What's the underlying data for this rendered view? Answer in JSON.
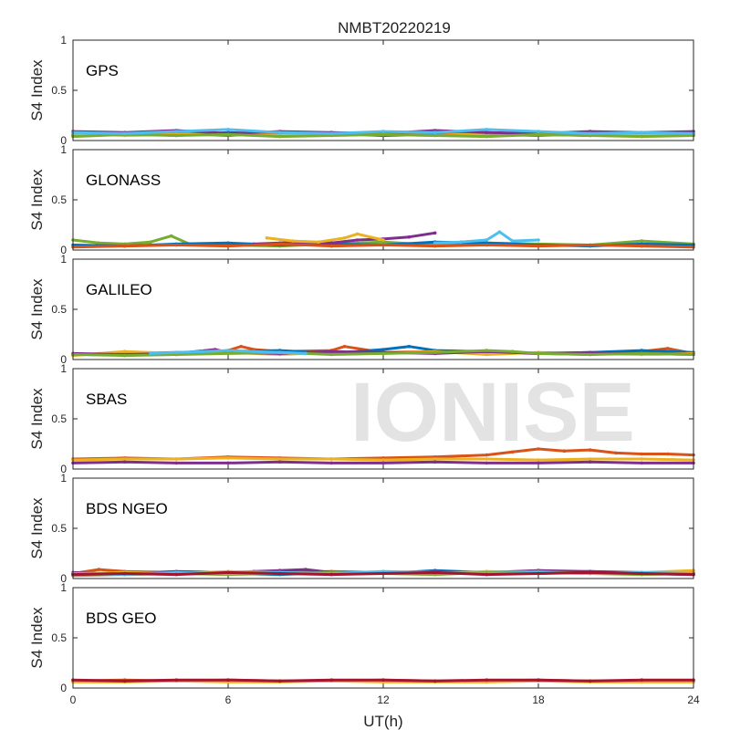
{
  "figure": {
    "title": "NMBT20220219",
    "watermark": "IONISE",
    "xlabel": "UT(h)",
    "x_ticks": [
      0,
      6,
      12,
      18,
      24
    ],
    "series_colors": [
      "#0072BD",
      "#D95319",
      "#EDB120",
      "#7E2F8E",
      "#77AC30",
      "#4DBEEE",
      "#A2142F"
    ]
  },
  "chart_data": [
    {
      "type": "scatter",
      "label": "GPS",
      "ylabel": "S4 Index",
      "xlim": [
        0,
        24
      ],
      "ylim": [
        0,
        1
      ],
      "y_ticks": [
        "0",
        "0.5",
        "1"
      ],
      "series": [
        {
          "color": "#0072BD",
          "x": [
            0,
            2,
            4,
            6,
            8,
            10,
            12,
            14,
            16,
            18,
            20,
            22,
            24
          ],
          "y": [
            0.06,
            0.07,
            0.05,
            0.08,
            0.06,
            0.07,
            0.05,
            0.06,
            0.08,
            0.06,
            0.05,
            0.07,
            0.06
          ]
        },
        {
          "color": "#D95319",
          "x": [
            0,
            2,
            4,
            6,
            8,
            10,
            12,
            14,
            16,
            18,
            20,
            22,
            24
          ],
          "y": [
            0.05,
            0.06,
            0.07,
            0.05,
            0.08,
            0.06,
            0.07,
            0.09,
            0.06,
            0.05,
            0.07,
            0.06,
            0.05
          ]
        },
        {
          "color": "#EDB120",
          "x": [
            0,
            2,
            4,
            6,
            8,
            10,
            12,
            14,
            16,
            18,
            20,
            22,
            24
          ],
          "y": [
            0.07,
            0.05,
            0.06,
            0.07,
            0.05,
            0.08,
            0.06,
            0.05,
            0.07,
            0.08,
            0.06,
            0.05,
            0.07
          ]
        },
        {
          "color": "#7E2F8E",
          "x": [
            0,
            2,
            4,
            6,
            8,
            10,
            12,
            14,
            16,
            18,
            20,
            22,
            24
          ],
          "y": [
            0.09,
            0.08,
            0.1,
            0.07,
            0.09,
            0.08,
            0.07,
            0.1,
            0.08,
            0.07,
            0.09,
            0.08,
            0.09
          ]
        },
        {
          "color": "#77AC30",
          "x": [
            0,
            2,
            4,
            6,
            8,
            10,
            12,
            14,
            16,
            18,
            20,
            22,
            24
          ],
          "y": [
            0.04,
            0.06,
            0.05,
            0.06,
            0.04,
            0.05,
            0.06,
            0.05,
            0.04,
            0.06,
            0.05,
            0.04,
            0.05
          ]
        },
        {
          "color": "#4DBEEE",
          "x": [
            0,
            2,
            4,
            6,
            8,
            10,
            12,
            14,
            16,
            18,
            20,
            22,
            24
          ],
          "y": [
            0.08,
            0.07,
            0.09,
            0.11,
            0.08,
            0.07,
            0.09,
            0.08,
            0.11,
            0.09,
            0.07,
            0.08,
            0.07
          ]
        }
      ]
    },
    {
      "type": "scatter",
      "label": "GLONASS",
      "ylabel": "S4 Index",
      "xlim": [
        0,
        24
      ],
      "ylim": [
        0,
        1
      ],
      "y_ticks": [
        "0",
        "0.5",
        "1"
      ],
      "series": [
        {
          "color": "#77AC30",
          "x": [
            0,
            1,
            2,
            3,
            3.8,
            4.5,
            6,
            8,
            10,
            12,
            14,
            16,
            18,
            20,
            22,
            24
          ],
          "y": [
            0.1,
            0.07,
            0.06,
            0.08,
            0.14,
            0.06,
            0.05,
            0.04,
            0.06,
            0.08,
            0.05,
            0.07,
            0.06,
            0.05,
            0.09,
            0.06
          ]
        },
        {
          "color": "#0072BD",
          "x": [
            0,
            2,
            4,
            6,
            8,
            10,
            12,
            14,
            16,
            18,
            20,
            22,
            24
          ],
          "y": [
            0.05,
            0.04,
            0.06,
            0.07,
            0.05,
            0.06,
            0.05,
            0.08,
            0.07,
            0.05,
            0.04,
            0.06,
            0.05
          ]
        },
        {
          "color": "#7E2F8E",
          "x": [
            7,
            8,
            9,
            10,
            11,
            12,
            13,
            14
          ],
          "y": [
            0.06,
            0.07,
            0.08,
            0.07,
            0.1,
            0.11,
            0.13,
            0.17
          ]
        },
        {
          "color": "#EDB120",
          "x": [
            7.5,
            8.5,
            9.5,
            10.5,
            11,
            12
          ],
          "y": [
            0.12,
            0.09,
            0.08,
            0.12,
            0.16,
            0.1
          ]
        },
        {
          "color": "#4DBEEE",
          "x": [
            14,
            15,
            16,
            16.5,
            17,
            18
          ],
          "y": [
            0.07,
            0.08,
            0.1,
            0.18,
            0.09,
            0.1
          ]
        },
        {
          "color": "#D95319",
          "x": [
            0,
            2,
            4,
            6,
            8,
            10,
            12,
            14,
            16,
            18,
            20,
            22,
            24
          ],
          "y": [
            0.03,
            0.04,
            0.05,
            0.04,
            0.06,
            0.04,
            0.05,
            0.04,
            0.05,
            0.04,
            0.05,
            0.04,
            0.03
          ]
        }
      ]
    },
    {
      "type": "scatter",
      "label": "GALILEO",
      "ylabel": "S4 Index",
      "xlim": [
        0,
        24
      ],
      "ylim": [
        0,
        1
      ],
      "y_ticks": [
        "0",
        "0.5",
        "1"
      ],
      "series": [
        {
          "color": "#D95319",
          "x": [
            0,
            2,
            4,
            6,
            6.5,
            7,
            8,
            10,
            10.5,
            12,
            14,
            16,
            18,
            20,
            22,
            23,
            24
          ],
          "y": [
            0.05,
            0.06,
            0.05,
            0.09,
            0.13,
            0.1,
            0.08,
            0.09,
            0.13,
            0.07,
            0.08,
            0.07,
            0.06,
            0.05,
            0.08,
            0.11,
            0.06
          ]
        },
        {
          "color": "#0072BD",
          "x": [
            0,
            2,
            4,
            6,
            8,
            10,
            12,
            13,
            14,
            16,
            18,
            20,
            22,
            24
          ],
          "y": [
            0.05,
            0.06,
            0.07,
            0.08,
            0.09,
            0.06,
            0.1,
            0.13,
            0.09,
            0.08,
            0.06,
            0.07,
            0.09,
            0.07
          ]
        },
        {
          "color": "#EDB120",
          "x": [
            0,
            1,
            2,
            4,
            6,
            8,
            10,
            12,
            14,
            16,
            18,
            20,
            22,
            24
          ],
          "y": [
            0.04,
            0.06,
            0.08,
            0.06,
            0.07,
            0.05,
            0.07,
            0.06,
            0.08,
            0.05,
            0.07,
            0.06,
            0.05,
            0.06
          ]
        },
        {
          "color": "#7E2F8E",
          "x": [
            0,
            2,
            4,
            5.5,
            6,
            8,
            10,
            12,
            14,
            16,
            18,
            20,
            22,
            24
          ],
          "y": [
            0.06,
            0.05,
            0.06,
            0.1,
            0.07,
            0.06,
            0.08,
            0.07,
            0.06,
            0.08,
            0.06,
            0.07,
            0.06,
            0.05
          ]
        },
        {
          "color": "#77AC30",
          "x": [
            0,
            2,
            4,
            6,
            8,
            10,
            12,
            14,
            16,
            17,
            18,
            20,
            22,
            24
          ],
          "y": [
            0.05,
            0.04,
            0.05,
            0.06,
            0.07,
            0.05,
            0.06,
            0.07,
            0.09,
            0.08,
            0.06,
            0.05,
            0.06,
            0.05
          ]
        },
        {
          "color": "#4DBEEE",
          "x": [
            3,
            4,
            5,
            6,
            7,
            8,
            9
          ],
          "y": [
            0.06,
            0.07,
            0.08,
            0.09,
            0.08,
            0.07,
            0.06
          ]
        }
      ]
    },
    {
      "type": "scatter",
      "label": "SBAS",
      "ylabel": "S4 Index",
      "xlim": [
        0,
        24
      ],
      "ylim": [
        0,
        1
      ],
      "y_ticks": [
        "0",
        "0.5",
        "1"
      ],
      "series": [
        {
          "color": "#D95319",
          "x": [
            0,
            2,
            4,
            6,
            8,
            10,
            12,
            14,
            16,
            17,
            18,
            19,
            20,
            21,
            22,
            23,
            24
          ],
          "y": [
            0.1,
            0.11,
            0.1,
            0.12,
            0.11,
            0.1,
            0.11,
            0.12,
            0.14,
            0.17,
            0.2,
            0.18,
            0.19,
            0.16,
            0.15,
            0.15,
            0.14
          ]
        },
        {
          "color": "#EDB120",
          "x": [
            0,
            2,
            4,
            6,
            8,
            10,
            12,
            14,
            16,
            18,
            20,
            22,
            24
          ],
          "y": [
            0.09,
            0.1,
            0.1,
            0.11,
            0.1,
            0.1,
            0.09,
            0.1,
            0.1,
            0.09,
            0.1,
            0.1,
            0.09
          ]
        },
        {
          "color": "#7E2F8E",
          "x": [
            0,
            2,
            4,
            6,
            8,
            10,
            12,
            14,
            16,
            18,
            20,
            22,
            24
          ],
          "y": [
            0.06,
            0.07,
            0.06,
            0.06,
            0.07,
            0.06,
            0.06,
            0.07,
            0.06,
            0.06,
            0.07,
            0.06,
            0.06
          ]
        }
      ]
    },
    {
      "type": "scatter",
      "label": "BDS NGEO",
      "ylabel": "S4 Index",
      "xlim": [
        0,
        24
      ],
      "ylim": [
        0,
        1
      ],
      "y_ticks": [
        "0",
        "0.5",
        "1"
      ],
      "series": [
        {
          "color": "#D95319",
          "x": [
            0,
            1,
            2,
            4,
            6,
            8,
            10,
            12,
            14,
            16,
            18,
            20,
            22,
            24
          ],
          "y": [
            0.05,
            0.09,
            0.07,
            0.06,
            0.05,
            0.06,
            0.07,
            0.06,
            0.07,
            0.05,
            0.08,
            0.06,
            0.05,
            0.06
          ]
        },
        {
          "color": "#0072BD",
          "x": [
            0,
            2,
            4,
            6,
            8,
            10,
            12,
            14,
            16,
            18,
            20,
            22,
            24
          ],
          "y": [
            0.04,
            0.05,
            0.06,
            0.05,
            0.04,
            0.06,
            0.05,
            0.08,
            0.06,
            0.05,
            0.07,
            0.05,
            0.04
          ]
        },
        {
          "color": "#7E2F8E",
          "x": [
            0,
            2,
            4,
            6,
            7,
            8,
            9,
            10,
            12,
            14,
            16,
            18,
            20,
            22,
            24
          ],
          "y": [
            0.06,
            0.05,
            0.07,
            0.06,
            0.07,
            0.08,
            0.09,
            0.06,
            0.05,
            0.07,
            0.06,
            0.08,
            0.07,
            0.06,
            0.05
          ]
        },
        {
          "color": "#EDB120",
          "x": [
            0,
            2,
            4,
            6,
            8,
            10,
            12,
            14,
            16,
            18,
            20,
            22,
            24
          ],
          "y": [
            0.05,
            0.06,
            0.05,
            0.07,
            0.06,
            0.05,
            0.06,
            0.05,
            0.07,
            0.06,
            0.05,
            0.06,
            0.08
          ]
        },
        {
          "color": "#77AC30",
          "x": [
            0,
            2,
            4,
            6,
            8,
            10,
            12,
            14,
            16,
            18,
            20,
            22,
            24
          ],
          "y": [
            0.03,
            0.04,
            0.05,
            0.04,
            0.05,
            0.06,
            0.05,
            0.04,
            0.06,
            0.07,
            0.05,
            0.04,
            0.05
          ]
        },
        {
          "color": "#4DBEEE",
          "x": [
            0,
            2,
            4,
            6,
            8,
            10,
            12,
            14,
            16,
            18,
            20,
            22,
            24
          ],
          "y": [
            0.05,
            0.04,
            0.06,
            0.05,
            0.06,
            0.05,
            0.07,
            0.06,
            0.05,
            0.06,
            0.05,
            0.06,
            0.05
          ]
        },
        {
          "color": "#A2142F",
          "x": [
            0,
            2,
            4,
            6,
            8,
            10,
            12,
            14,
            16,
            18,
            20,
            22,
            24
          ],
          "y": [
            0.04,
            0.05,
            0.04,
            0.06,
            0.05,
            0.04,
            0.05,
            0.06,
            0.04,
            0.05,
            0.06,
            0.05,
            0.04
          ]
        }
      ]
    },
    {
      "type": "scatter",
      "label": "BDS GEO",
      "ylabel": "S4 Index",
      "xlim": [
        0,
        24
      ],
      "ylim": [
        0,
        1
      ],
      "y_ticks": [
        "0",
        "0.5",
        "1"
      ],
      "series": [
        {
          "color": "#D95319",
          "x": [
            0,
            2,
            4,
            6,
            8,
            10,
            12,
            14,
            16,
            18,
            20,
            22,
            24
          ],
          "y": [
            0.07,
            0.08,
            0.07,
            0.08,
            0.07,
            0.07,
            0.08,
            0.07,
            0.07,
            0.08,
            0.07,
            0.07,
            0.07
          ]
        },
        {
          "color": "#EDB120",
          "x": [
            0,
            2,
            4,
            6,
            8,
            10,
            12,
            14,
            16,
            18,
            20,
            22,
            24
          ],
          "y": [
            0.06,
            0.06,
            0.07,
            0.06,
            0.06,
            0.07,
            0.06,
            0.06,
            0.06,
            0.07,
            0.06,
            0.06,
            0.06
          ]
        },
        {
          "color": "#A2142F",
          "x": [
            0,
            2,
            4,
            6,
            8,
            10,
            12,
            14,
            16,
            18,
            20,
            22,
            24
          ],
          "y": [
            0.08,
            0.07,
            0.08,
            0.08,
            0.07,
            0.08,
            0.08,
            0.07,
            0.08,
            0.08,
            0.07,
            0.08,
            0.08
          ]
        }
      ]
    }
  ]
}
